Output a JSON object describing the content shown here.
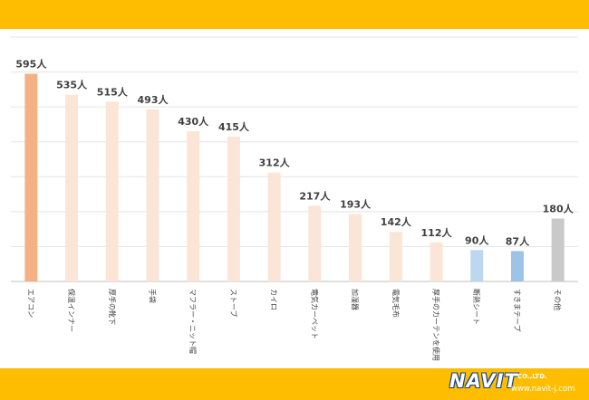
{
  "chart_data": {
    "type": "bar",
    "categories": [
      "エアコン",
      "保温インナー",
      "厚手の靴下",
      "手袋",
      "マフラー・ニット帽",
      "ストーブ",
      "カイロ",
      "電気カーペット",
      "加湿器",
      "電気毛布",
      "厚手のカーテンを使用",
      "断熱シート",
      "すきまテープ",
      "その他"
    ],
    "values": [
      595,
      535,
      515,
      493,
      430,
      415,
      312,
      217,
      193,
      142,
      112,
      90,
      87,
      180
    ],
    "value_labels": [
      "595人",
      "535人",
      "515人",
      "493人",
      "430人",
      "415人",
      "312人",
      "217人",
      "193人",
      "142人",
      "112人",
      "90人",
      "87人",
      "180人"
    ],
    "bar_colors": [
      "#f4b183",
      "#fbe5d6",
      "#fbe5d6",
      "#fbe5d6",
      "#fbe5d6",
      "#fbe5d6",
      "#fbe5d6",
      "#fbe5d6",
      "#fbe5d6",
      "#fbe5d6",
      "#fbe5d6",
      "#bdd7ee",
      "#9dc3e6",
      "#c9c9c9"
    ],
    "ylim": [
      0,
      700
    ],
    "grid": true,
    "legend": "none"
  },
  "logo": {
    "name": "NAVIT",
    "company_suffix": "CO.,LTD.",
    "url": "www.navit-j.com"
  }
}
